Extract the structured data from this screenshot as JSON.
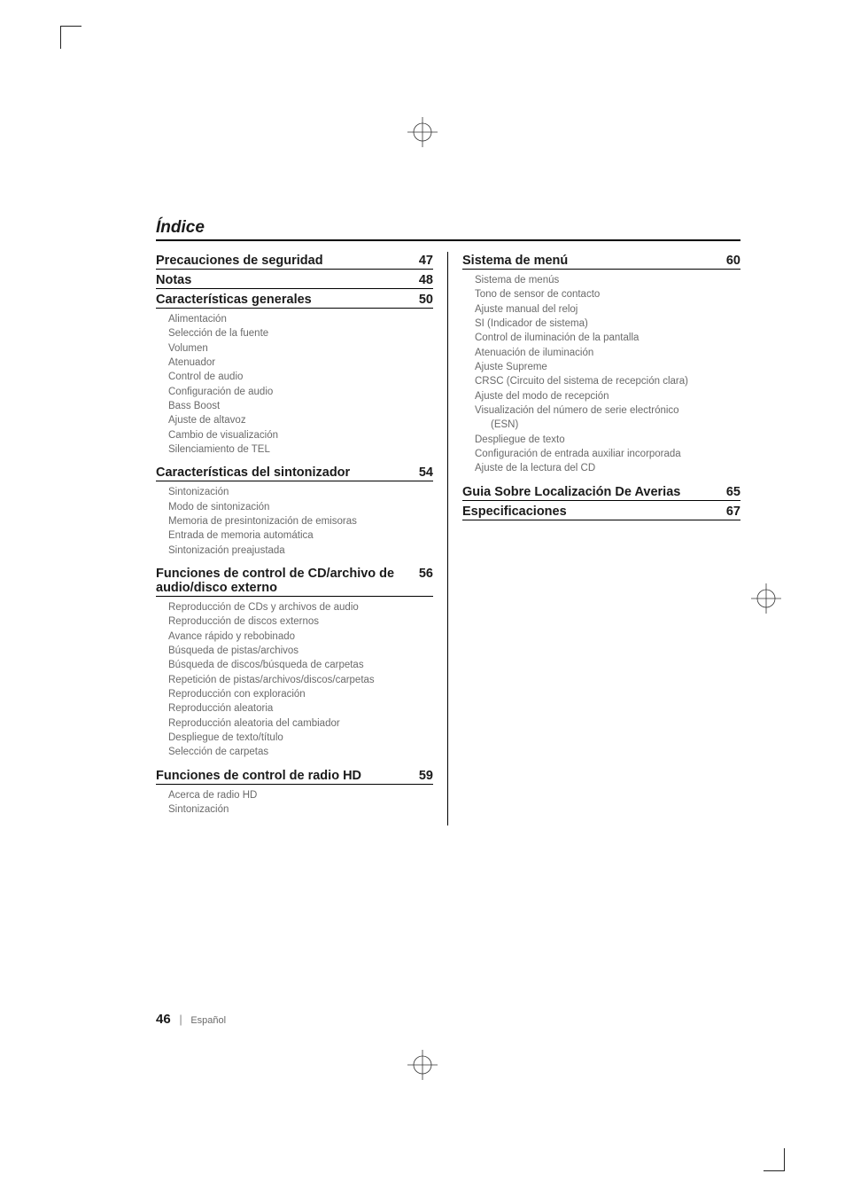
{
  "page_title": "Índice",
  "footer": {
    "page_number": "46",
    "language": "Español"
  },
  "left_column": [
    {
      "title": "Precauciones de seguridad",
      "page": "47",
      "items": []
    },
    {
      "title": "Notas",
      "page": "48",
      "items": []
    },
    {
      "title": "Características generales",
      "page": "50",
      "items": [
        "Alimentación",
        "Selección de la fuente",
        "Volumen",
        "Atenuador",
        "Control de audio",
        "Configuración de audio",
        "Bass Boost",
        "Ajuste de altavoz",
        "Cambio de visualización",
        "Silenciamiento de TEL"
      ]
    },
    {
      "title": "Características del sintonizador",
      "page": "54",
      "items": [
        "Sintonización",
        "Modo de sintonización",
        "Memoria de presintonización de emisoras",
        "Entrada de memoria automática",
        "Sintonización preajustada"
      ]
    },
    {
      "title": "Funciones de control de CD/archivo de audio/disco externo",
      "page": "56",
      "items": [
        "Reproducción de CDs y archivos de audio",
        "Reproducción de discos externos",
        "Avance rápido y rebobinado",
        "Búsqueda de pistas/archivos",
        "Búsqueda de discos/búsqueda de carpetas",
        "Repetición de pistas/archivos/discos/carpetas",
        "Reproducción con exploración",
        "Reproducción aleatoria",
        "Reproducción aleatoria del cambiador",
        "Despliegue de texto/título",
        "Selección de carpetas"
      ]
    },
    {
      "title": "Funciones de control de radio HD",
      "page": "59",
      "items": [
        "Acerca de radio HD",
        "Sintonización"
      ]
    }
  ],
  "right_column": [
    {
      "title": "Sistema de menú",
      "page": "60",
      "items": [
        "Sistema de menús",
        "Tono de sensor de contacto",
        "Ajuste manual del reloj",
        "SI (Indicador de sistema)",
        "Control de iluminación de la pantalla",
        "Atenuación de iluminación",
        "Ajuste Supreme",
        "CRSC (Circuito del sistema de recepción clara)",
        "Ajuste del modo de recepción",
        "Visualización del número de serie electrónico",
        {
          "text": "(ESN)",
          "indent": true
        },
        "Despliegue de texto",
        "Configuración de entrada auxiliar incorporada",
        "Ajuste de la lectura del CD"
      ]
    },
    {
      "title": "Guia Sobre Localización De Averias",
      "page": "65",
      "items": []
    },
    {
      "title": "Especificaciones",
      "page": "67",
      "items": []
    }
  ]
}
